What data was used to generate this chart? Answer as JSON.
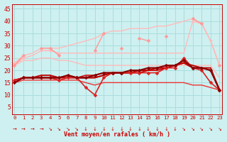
{
  "bg_color": "#cef0f0",
  "grid_color": "#aadddd",
  "xlabel": "Vent moyen/en rafales ( km/h )",
  "xlim": [
    -0.3,
    23.3
  ],
  "ylim": [
    2,
    47
  ],
  "yticks": [
    5,
    10,
    15,
    20,
    25,
    30,
    35,
    40,
    45
  ],
  "xticks": [
    0,
    1,
    2,
    3,
    4,
    5,
    6,
    7,
    8,
    9,
    10,
    11,
    12,
    13,
    14,
    15,
    16,
    17,
    18,
    19,
    20,
    21,
    22,
    23
  ],
  "series": [
    {
      "name": "max_envelope_top",
      "y": [
        23,
        26,
        27,
        29,
        29,
        29,
        30,
        31,
        32,
        33,
        35,
        36,
        36,
        37,
        37,
        37,
        38,
        38,
        39,
        40,
        41,
        39,
        32,
        22
      ],
      "color": "#ffbbbb",
      "lw": 1.0,
      "marker": null,
      "ms": 0,
      "zorder": 1
    },
    {
      "name": "max_envelope_bottom",
      "y": [
        22,
        25,
        26,
        28,
        28,
        27,
        27,
        27,
        27,
        27,
        27,
        27,
        27,
        27,
        27,
        27,
        27,
        27,
        27,
        27,
        40,
        39,
        32,
        22
      ],
      "color": "#ffbbbb",
      "lw": 1.0,
      "marker": null,
      "ms": 0,
      "zorder": 1
    },
    {
      "name": "pink_with_diamonds",
      "y": [
        22,
        26,
        null,
        29,
        29,
        26,
        null,
        null,
        null,
        28,
        35,
        null,
        29,
        null,
        33,
        32,
        null,
        34,
        null,
        null,
        41,
        39,
        null,
        22
      ],
      "color": "#ff9999",
      "lw": 1.0,
      "marker": "D",
      "ms": 2.5,
      "zorder": 3
    },
    {
      "name": "pink_secondary",
      "y": [
        23,
        25,
        null,
        28,
        28,
        27,
        null,
        null,
        null,
        null,
        null,
        null,
        null,
        null,
        null,
        null,
        null,
        null,
        null,
        null,
        40,
        39,
        32,
        22
      ],
      "color": "#ffbbbb",
      "lw": 1.0,
      "marker": "D",
      "ms": 2.0,
      "zorder": 2
    },
    {
      "name": "lower_pink_flat",
      "y": [
        22,
        24,
        24,
        25,
        25,
        24,
        24,
        23,
        22,
        22,
        22,
        22,
        22,
        22,
        22,
        22,
        22,
        22,
        22,
        22,
        22,
        22,
        22,
        17
      ],
      "color": "#ffbbbb",
      "lw": 1.0,
      "marker": null,
      "ms": 0,
      "zorder": 1
    },
    {
      "name": "red_with_diamonds_dip",
      "y": [
        16,
        17,
        17,
        17,
        17,
        16,
        17,
        17,
        13,
        10,
        17,
        19,
        19,
        19,
        19,
        19,
        19,
        21,
        21,
        25,
        21,
        20,
        15,
        12
      ],
      "color": "#dd2222",
      "lw": 1.2,
      "marker": "D",
      "ms": 2.5,
      "zorder": 6
    },
    {
      "name": "red_line_1",
      "y": [
        16,
        17,
        17,
        17,
        17,
        17,
        17,
        17,
        17,
        17,
        18,
        19,
        19,
        19,
        19,
        20,
        20,
        21,
        22,
        23,
        21,
        21,
        20,
        12
      ],
      "color": "#cc0000",
      "lw": 1.3,
      "marker": null,
      "ms": 0,
      "zorder": 4
    },
    {
      "name": "red_line_2",
      "y": [
        16,
        17,
        17,
        18,
        18,
        17,
        18,
        17,
        17,
        17,
        18,
        19,
        19,
        19,
        20,
        20,
        21,
        21,
        22,
        23,
        22,
        21,
        21,
        12
      ],
      "color": "#bb0000",
      "lw": 1.3,
      "marker": null,
      "ms": 0,
      "zorder": 4
    },
    {
      "name": "red_line_3",
      "y": [
        15,
        17,
        17,
        17,
        17,
        17,
        17,
        17,
        18,
        18,
        19,
        19,
        19,
        19,
        20,
        20,
        21,
        21,
        22,
        23,
        21,
        21,
        20,
        12
      ],
      "color": "#cc0000",
      "lw": 1.1,
      "marker": null,
      "ms": 0,
      "zorder": 4
    },
    {
      "name": "dark_red_with_diamonds",
      "y": [
        15,
        17,
        17,
        17,
        17,
        17,
        18,
        17,
        17,
        18,
        19,
        19,
        19,
        20,
        20,
        21,
        21,
        22,
        22,
        24,
        21,
        21,
        20,
        12
      ],
      "color": "#880000",
      "lw": 1.5,
      "marker": "D",
      "ms": 2.5,
      "zorder": 7
    },
    {
      "name": "lower_red_decreasing",
      "y": [
        15,
        16,
        16,
        16,
        16,
        16,
        16,
        16,
        15,
        14,
        15,
        15,
        15,
        15,
        15,
        15,
        15,
        15,
        15,
        15,
        14,
        14,
        13,
        12
      ],
      "color": "#ee3333",
      "lw": 1.0,
      "marker": null,
      "ms": 0,
      "zorder": 3
    }
  ],
  "arrow_chars": [
    "→",
    "→",
    "→",
    "→",
    "↘",
    "↘",
    "↘",
    "↘",
    "↓",
    "↓",
    "↓",
    "↓",
    "↓",
    "↓",
    "↓",
    "↓",
    "↓",
    "↓",
    "↓",
    "↘",
    "↘",
    "↘",
    "↘",
    "↘"
  ],
  "arrow_color": "#cc0000"
}
